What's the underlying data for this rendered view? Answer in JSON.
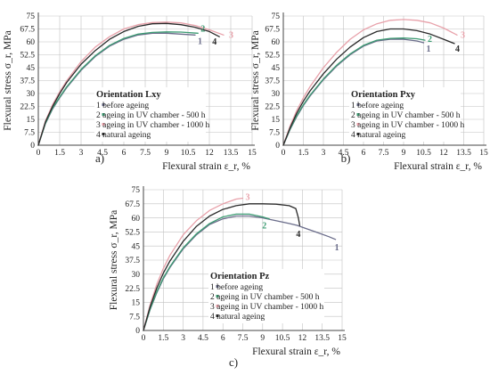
{
  "colors": {
    "before_ageing": "#6a6c8a",
    "uv_500h": "#3d9c73",
    "uv_1000h": "#e8a1aa",
    "natural": "#2a2a2a",
    "grid": "#c2c2c2",
    "axis": "#444444"
  },
  "chart_data": [
    {
      "type": "line",
      "panel_label": "a)",
      "legend_title": "Orientation Lxy",
      "xlabel": "Flexural strain ε_r, %",
      "ylabel": "Flexural stress σ_r, MPa",
      "xlim": [
        0,
        15
      ],
      "ylim": [
        0,
        75
      ],
      "x_ticks": [
        "0",
        "1.5",
        "3",
        "4.5",
        "6",
        "7.5",
        "9",
        "10.5",
        "12",
        "13.5",
        "15"
      ],
      "y_ticks": [
        "0",
        "7.5",
        "15",
        "22.5",
        "30",
        "37.5",
        "45",
        "52.5",
        "60",
        "67.5",
        "75"
      ],
      "grid": true,
      "legend_position": "bottom-center",
      "series": [
        {
          "name": "1 before ageing",
          "end_label": "1",
          "color_key": "before_ageing",
          "x": [
            0,
            0.5,
            1.0,
            1.5,
            2.0,
            3.0,
            4.0,
            5.0,
            6.0,
            7.0,
            8.0,
            9.0,
            10.0,
            11.0
          ],
          "y": [
            0,
            12.5,
            21.0,
            27.5,
            33.5,
            43.5,
            51.5,
            57.5,
            61.5,
            64.0,
            65.0,
            65.0,
            64.5,
            64.0
          ]
        },
        {
          "name": "2 ageing in UV chamber - 500 h",
          "end_label": "2",
          "color_key": "uv_500h",
          "x": [
            0,
            0.5,
            1.0,
            1.5,
            2.0,
            3.0,
            4.0,
            5.0,
            6.0,
            7.0,
            8.0,
            9.0,
            10.0,
            11.2
          ],
          "y": [
            0,
            12.8,
            21.5,
            28.0,
            34.0,
            44.0,
            52.0,
            58.0,
            62.0,
            64.5,
            65.5,
            65.8,
            65.7,
            65.0
          ]
        },
        {
          "name": "3 ageing in UV chamber - 1000 h",
          "end_label": "3",
          "color_key": "uv_1000h",
          "x": [
            0,
            0.5,
            1.0,
            1.5,
            2.0,
            3.0,
            4.0,
            5.0,
            6.0,
            7.0,
            8.0,
            9.0,
            10.0,
            11.0,
            12.0,
            13.0
          ],
          "y": [
            0,
            14.0,
            23.5,
            31.0,
            37.5,
            48.5,
            57.0,
            63.0,
            67.5,
            70.0,
            71.2,
            71.5,
            71.0,
            69.5,
            67.0,
            64.0
          ]
        },
        {
          "name": "4 natural ageing",
          "end_label": "4",
          "color_key": "natural",
          "x": [
            0,
            0.5,
            1.0,
            1.5,
            2.0,
            3.0,
            4.0,
            5.0,
            6.0,
            7.0,
            8.0,
            9.0,
            10.0,
            11.0,
            12.0,
            12.7
          ],
          "y": [
            0,
            13.5,
            22.5,
            30.0,
            36.5,
            47.0,
            55.0,
            61.5,
            66.0,
            69.0,
            70.5,
            70.7,
            70.0,
            68.5,
            66.0,
            63.0
          ]
        }
      ]
    },
    {
      "type": "line",
      "panel_label": "b)",
      "legend_title": "Orientation Pxy",
      "xlabel": "Flexural strain ε_r, %",
      "ylabel": "Flexural stress σ_r, MPa",
      "xlim": [
        0,
        15
      ],
      "ylim": [
        0,
        75
      ],
      "x_ticks": [
        "0",
        "1.5",
        "3",
        "4.5",
        "6",
        "7.5",
        "9",
        "10.5",
        "12",
        "13.5",
        "15"
      ],
      "y_ticks": [
        "0",
        "7.5",
        "15",
        "22.5",
        "30",
        "37.5",
        "45",
        "52.5",
        "60",
        "67.5",
        "75"
      ],
      "grid": true,
      "legend_position": "bottom-center",
      "series": [
        {
          "name": "1 before ageing",
          "end_label": "1",
          "color_key": "before_ageing",
          "x": [
            0,
            0.5,
            1.0,
            1.5,
            2.0,
            3.0,
            4.0,
            5.0,
            6.0,
            7.0,
            8.0,
            9.0,
            10.0,
            10.5
          ],
          "y": [
            0,
            9.0,
            16.5,
            23.0,
            28.5,
            38.0,
            46.0,
            52.5,
            57.5,
            60.5,
            61.5,
            61.5,
            60.5,
            59.5
          ]
        },
        {
          "name": "2 ageing in UV chamber - 500 h",
          "end_label": "2",
          "color_key": "uv_500h",
          "x": [
            0,
            0.5,
            1.0,
            1.5,
            2.0,
            3.0,
            4.0,
            5.0,
            6.0,
            7.0,
            8.0,
            9.0,
            10.0,
            10.6
          ],
          "y": [
            0,
            9.3,
            17.0,
            23.5,
            29.0,
            38.5,
            46.5,
            53.0,
            58.0,
            61.0,
            62.0,
            62.2,
            61.8,
            61.0
          ]
        },
        {
          "name": "3 ageing in UV chamber - 1000 h",
          "end_label": "3",
          "color_key": "uv_1000h",
          "x": [
            0,
            0.5,
            1.0,
            1.5,
            2.0,
            3.0,
            4.0,
            5.0,
            6.0,
            7.0,
            8.0,
            9.0,
            10.0,
            11.0,
            12.0,
            13.0
          ],
          "y": [
            0,
            11.0,
            20.0,
            27.5,
            34.0,
            45.0,
            54.0,
            61.5,
            67.0,
            70.5,
            72.5,
            73.0,
            72.5,
            71.0,
            68.0,
            64.0
          ]
        },
        {
          "name": "4 natural ageing",
          "end_label": "4",
          "color_key": "natural",
          "x": [
            0,
            0.5,
            1.0,
            1.5,
            2.0,
            3.0,
            4.0,
            5.0,
            6.0,
            7.0,
            8.0,
            9.0,
            10.0,
            11.0,
            12.0,
            12.8
          ],
          "y": [
            0,
            10.0,
            18.5,
            25.5,
            31.5,
            41.5,
            50.0,
            57.0,
            62.5,
            66.0,
            67.5,
            67.5,
            66.5,
            64.5,
            61.5,
            59.0
          ]
        }
      ]
    },
    {
      "type": "line",
      "panel_label": "c)",
      "legend_title": "Orientation Pz",
      "xlabel": "Flexural strain ε_r, %",
      "ylabel": "Flexural stress σ_r, MPa",
      "xlim": [
        0,
        15
      ],
      "ylim": [
        0,
        75
      ],
      "x_ticks": [
        "0",
        "1.5",
        "3",
        "4.5",
        "6",
        "7.5",
        "9",
        "10.5",
        "12",
        "13.5",
        "15"
      ],
      "y_ticks": [
        "0",
        "7.5",
        "15",
        "22.5",
        "30",
        "37.5",
        "45",
        "52.5",
        "60",
        "67.5",
        "75"
      ],
      "grid": true,
      "legend_position": "bottom-center",
      "series": [
        {
          "name": "1 before ageing",
          "end_label": "1",
          "color_key": "before_ageing",
          "x": [
            0,
            0.5,
            1.0,
            1.5,
            2.0,
            3.0,
            4.0,
            5.0,
            6.0,
            7.0,
            8.0,
            9.0,
            10.0,
            11.0,
            11.6,
            12.0,
            13.0,
            14.0,
            14.5
          ],
          "y": [
            0,
            11.0,
            20.0,
            27.5,
            33.5,
            43.5,
            51.0,
            56.5,
            59.5,
            61.0,
            61.0,
            60.0,
            58.5,
            57.0,
            56.0,
            55.0,
            52.5,
            50.0,
            48.5
          ]
        },
        {
          "name": "2 ageing in UV chamber - 500 h",
          "end_label": "2",
          "color_key": "uv_500h",
          "x": [
            0,
            0.5,
            1.0,
            1.5,
            2.0,
            3.0,
            4.0,
            5.0,
            6.0,
            7.0,
            8.0,
            9.0,
            9.5
          ],
          "y": [
            0,
            11.3,
            20.5,
            28.0,
            34.0,
            44.0,
            51.5,
            57.0,
            60.5,
            62.0,
            62.0,
            60.5,
            59.5
          ]
        },
        {
          "name": "3 ageing in UV chamber - 1000 h",
          "end_label": "3",
          "color_key": "uv_1000h",
          "x": [
            0,
            0.5,
            1.0,
            1.5,
            2.0,
            3.0,
            4.0,
            5.0,
            6.0,
            7.0,
            7.5
          ],
          "y": [
            0,
            13.5,
            24.5,
            33.0,
            40.0,
            51.0,
            58.5,
            64.0,
            67.5,
            70.0,
            70.5
          ]
        },
        {
          "name": "4 natural ageing",
          "end_label": "4",
          "color_key": "natural",
          "x": [
            0,
            0.5,
            1.0,
            1.5,
            2.0,
            3.0,
            4.0,
            5.0,
            6.0,
            7.0,
            8.0,
            9.0,
            10.0,
            11.0,
            11.5,
            11.7,
            11.8
          ],
          "y": [
            0,
            12.5,
            22.5,
            30.5,
            37.0,
            47.5,
            55.5,
            61.0,
            64.5,
            66.5,
            67.5,
            67.5,
            67.3,
            66.5,
            65.0,
            60.0,
            56.0
          ]
        }
      ]
    }
  ]
}
